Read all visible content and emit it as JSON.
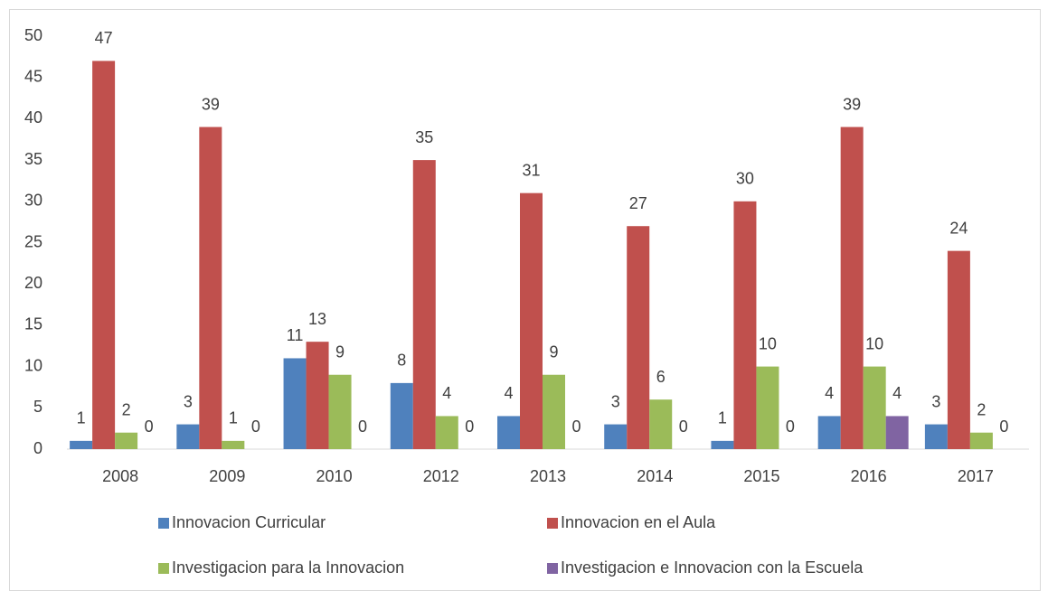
{
  "chart_data": {
    "type": "bar",
    "categories": [
      "2008",
      "2009",
      "2010",
      "2012",
      "2013",
      "2014",
      "2015",
      "2016",
      "2017"
    ],
    "series": [
      {
        "name": "Innovacion Curricular",
        "color": "#4f81bd",
        "values": [
          1,
          3,
          11,
          8,
          4,
          3,
          1,
          4,
          3
        ]
      },
      {
        "name": "Innovacion en el Aula",
        "color": "#c0504d",
        "values": [
          47,
          39,
          13,
          35,
          31,
          27,
          30,
          39,
          24
        ]
      },
      {
        "name": "Investigacion para la Innovacion",
        "color": "#9bbb59",
        "values": [
          2,
          1,
          9,
          4,
          9,
          6,
          10,
          10,
          2
        ]
      },
      {
        "name": "Investigacion e Innovacion con la Escuela",
        "color": "#8064a2",
        "values": [
          0,
          0,
          0,
          0,
          0,
          0,
          0,
          4,
          0
        ]
      }
    ],
    "ylim": [
      0,
      50
    ],
    "yticks": [
      0,
      5,
      10,
      15,
      20,
      25,
      30,
      35,
      40,
      45,
      50
    ],
    "grid": false,
    "legend": "bottom"
  }
}
